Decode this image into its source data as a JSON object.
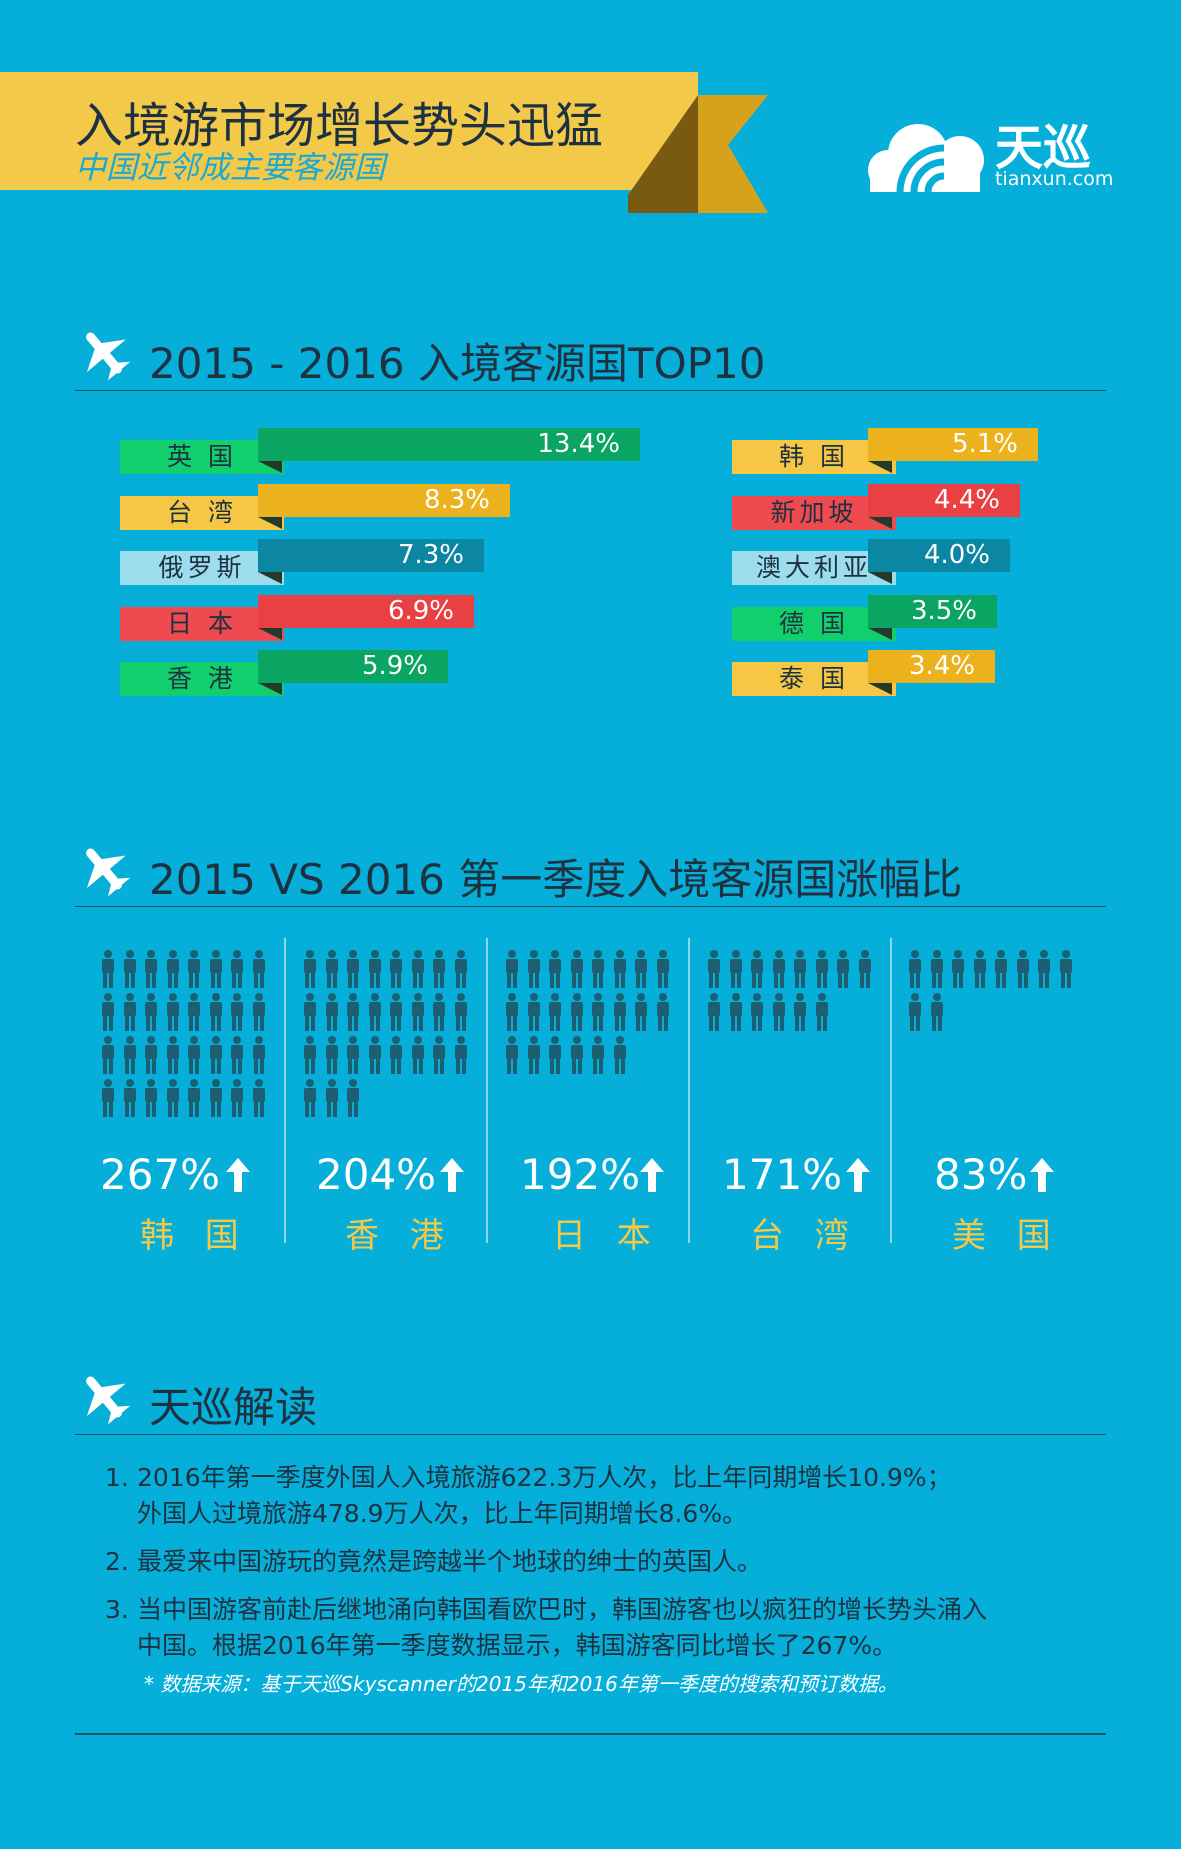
{
  "header": {
    "title": "入境游市场增长势头迅猛",
    "subtitle": "中国近邻成主要客源国"
  },
  "logo": {
    "name": "天巡",
    "url": "tianxun.com"
  },
  "section1": {
    "heading": "2015 - 2016 入境客源国TOP10"
  },
  "section2": {
    "heading": "2015 VS 2016 第一季度入境客源国涨幅比"
  },
  "section3": {
    "heading": "天巡解读"
  },
  "colors": {
    "background": "#05afd9",
    "green": "#0aa562",
    "yellow": "#ebb21d",
    "teal": "#0b86a3",
    "red": "#e84043",
    "gold_text": "#f3c94a"
  },
  "chart_data": [
    {
      "type": "bar",
      "title": "2015 - 2016 入境客源国TOP10",
      "categories": [
        "英 国",
        "台 湾",
        "俄罗斯",
        "日 本",
        "香 港",
        "韩 国",
        "新加坡",
        "澳大利亚",
        "德 国",
        "泰 国"
      ],
      "values": [
        13.4,
        8.3,
        7.3,
        6.9,
        5.9,
        5.1,
        4.4,
        4.0,
        3.5,
        3.4
      ],
      "value_labels": [
        "13.4%",
        "8.3%",
        "7.3%",
        "6.9%",
        "5.9%",
        "5.1%",
        "4.4%",
        "4.0%",
        "3.5%",
        "3.4%"
      ],
      "colors": [
        "#0aa562",
        "#ebb21d",
        "#0b86a3",
        "#e84043",
        "#0aa562",
        "#ebb21d",
        "#e84043",
        "#0b86a3",
        "#0aa562",
        "#ebb21d"
      ],
      "label_colors": [
        "#12cf6e",
        "#f6c744",
        "#9ddcec",
        "#ef4a4f",
        "#12cf6e",
        "#f6c744",
        "#ef4a4f",
        "#9ddcec",
        "#12cf6e",
        "#f6c744"
      ]
    },
    {
      "type": "bar",
      "title": "2015 VS 2016 第一季度入境客源国涨幅比",
      "categories": [
        "韩 国",
        "香 港",
        "日 本",
        "台 湾",
        "美 国"
      ],
      "values": [
        267,
        204,
        192,
        171,
        83
      ],
      "value_labels": [
        "267%",
        "204%",
        "192%",
        "171%",
        "83%"
      ],
      "icon_counts": [
        32,
        27,
        22,
        14,
        10
      ]
    }
  ],
  "notes": [
    {
      "num": "1.",
      "lines": [
        "2016年第一季度外国人入境旅游622.3万人次，比上年同期增长10.9%；",
        "外国人过境旅游478.9万人次，比上年同期增长8.6%。"
      ]
    },
    {
      "num": "2.",
      "lines": [
        "最爱来中国游玩的竟然是跨越半个地球的绅士的英国人。"
      ]
    },
    {
      "num": "3.",
      "lines": [
        "当中国游客前赴后继地涌向韩国看欧巴时，韩国游客也以疯狂的增长势头涌入",
        "中国。根据2016年第一季度数据显示，韩国游客同比增长了267%。"
      ]
    }
  ],
  "source": "* 数据来源：基于天巡Skyscanner的2015年和2016年第一季度的搜索和预订数据。"
}
